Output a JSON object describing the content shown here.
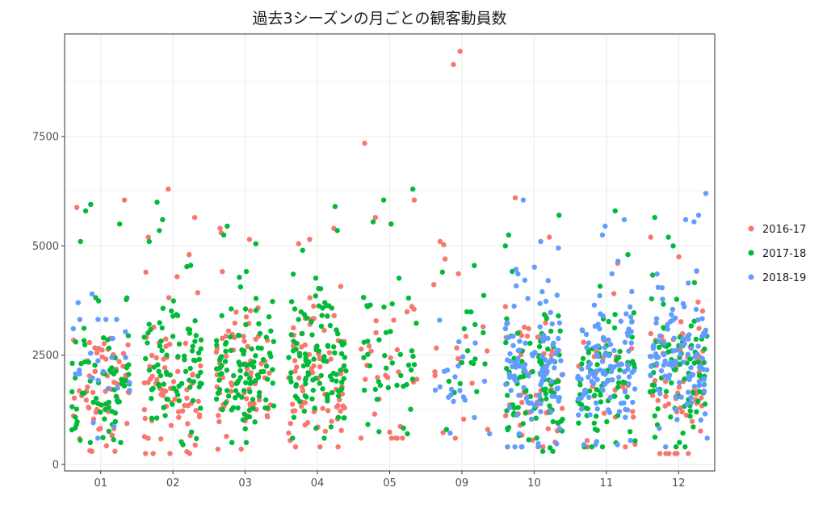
{
  "chart_data": {
    "type": "scatter",
    "title": "過去3シーズンの月ごとの観客動員数",
    "xlabel": "",
    "ylabel": "",
    "categories": [
      "01",
      "02",
      "03",
      "04",
      "05",
      "09",
      "10",
      "11",
      "12"
    ],
    "yticks": [
      0,
      2500,
      5000,
      7500
    ],
    "ytick_labels": [
      "0",
      "2500",
      "5000",
      "7500"
    ],
    "ylim": [
      -150,
      9850
    ],
    "grid": true,
    "legend_position": "right",
    "jitter_width": 0.4,
    "series": [
      {
        "name": "2016-17",
        "color": "#f8766d",
        "summary": [
          {
            "category": "01",
            "count": 60,
            "median": 1700,
            "spread": 1200,
            "min": 300,
            "max": 6050,
            "highlights": [
              5880,
              6050
            ]
          },
          {
            "category": "02",
            "count": 70,
            "median": 1800,
            "spread": 1300,
            "min": 250,
            "max": 6300,
            "highlights": [
              6300,
              5650,
              5200,
              4800
            ]
          },
          {
            "category": "03",
            "count": 70,
            "median": 2000,
            "spread": 1300,
            "min": 350,
            "max": 5400,
            "highlights": [
              5400,
              5300,
              5150
            ]
          },
          {
            "category": "04",
            "count": 75,
            "median": 2000,
            "spread": 1300,
            "min": 400,
            "max": 5400,
            "highlights": [
              5400,
              5150,
              5050
            ]
          },
          {
            "category": "05",
            "count": 30,
            "median": 2200,
            "spread": 1400,
            "min": 600,
            "max": 7350,
            "highlights": [
              7350,
              6050,
              5650
            ]
          },
          {
            "category": "09",
            "count": 20,
            "median": 2300,
            "spread": 1500,
            "min": 600,
            "max": 9450,
            "highlights": [
              9450,
              9150,
              5100,
              4700
            ]
          },
          {
            "category": "10",
            "count": 55,
            "median": 1600,
            "spread": 1200,
            "min": 400,
            "max": 6100,
            "highlights": [
              6100,
              5200
            ]
          },
          {
            "category": "11",
            "count": 30,
            "median": 1700,
            "spread": 1200,
            "min": 400,
            "max": 4600,
            "highlights": [
              4600
            ]
          },
          {
            "category": "12",
            "count": 60,
            "median": 1800,
            "spread": 1300,
            "min": 250,
            "max": 5200,
            "highlights": [
              5200,
              4750
            ]
          }
        ]
      },
      {
        "name": "2017-18",
        "color": "#00ba38",
        "summary": [
          {
            "category": "01",
            "count": 75,
            "median": 1800,
            "spread": 1100,
            "min": 500,
            "max": 5950,
            "highlights": [
              5950,
              5800,
              5500,
              5100
            ]
          },
          {
            "category": "02",
            "count": 85,
            "median": 2000,
            "spread": 1200,
            "min": 450,
            "max": 6000,
            "highlights": [
              6000,
              5600,
              5350,
              5100
            ]
          },
          {
            "category": "03",
            "count": 110,
            "median": 2100,
            "spread": 1100,
            "min": 500,
            "max": 5450,
            "highlights": [
              5450,
              5250,
              5050
            ]
          },
          {
            "category": "04",
            "count": 110,
            "median": 2200,
            "spread": 1200,
            "min": 600,
            "max": 5900,
            "highlights": [
              5900,
              5350,
              4900
            ]
          },
          {
            "category": "05",
            "count": 45,
            "median": 2400,
            "spread": 1400,
            "min": 700,
            "max": 6300,
            "highlights": [
              6300,
              6050,
              5550,
              5500
            ]
          },
          {
            "category": "09",
            "count": 18,
            "median": 2300,
            "spread": 1200,
            "min": 800,
            "max": 4550,
            "highlights": [
              4550,
              4400
            ]
          },
          {
            "category": "10",
            "count": 90,
            "median": 1800,
            "spread": 1200,
            "min": 300,
            "max": 5700,
            "highlights": [
              5700,
              5250,
              5000
            ]
          },
          {
            "category": "11",
            "count": 75,
            "median": 1900,
            "spread": 1100,
            "min": 400,
            "max": 5800,
            "highlights": [
              5800,
              4800
            ]
          },
          {
            "category": "12",
            "count": 85,
            "median": 2000,
            "spread": 1200,
            "min": 400,
            "max": 5650,
            "highlights": [
              5650,
              5200,
              5000
            ]
          }
        ]
      },
      {
        "name": "2018-19",
        "color": "#619cff",
        "summary": [
          {
            "category": "01",
            "count": 25,
            "median": 2200,
            "spread": 900,
            "min": 600,
            "max": 3900,
            "highlights": [
              3900,
              3700
            ]
          },
          {
            "category": "09",
            "count": 20,
            "median": 1600,
            "spread": 700,
            "min": 700,
            "max": 3300,
            "highlights": [
              3300
            ]
          },
          {
            "category": "10",
            "count": 120,
            "median": 2100,
            "spread": 1100,
            "min": 400,
            "max": 6050,
            "highlights": [
              6050,
              5100,
              4950
            ]
          },
          {
            "category": "11",
            "count": 110,
            "median": 2100,
            "spread": 1100,
            "min": 450,
            "max": 5600,
            "highlights": [
              5600,
              5450,
              5250,
              4650
            ]
          },
          {
            "category": "12",
            "count": 110,
            "median": 2200,
            "spread": 1100,
            "min": 400,
            "max": 6200,
            "highlights": [
              6200,
              5700,
              5600,
              5550
            ]
          }
        ]
      }
    ]
  }
}
